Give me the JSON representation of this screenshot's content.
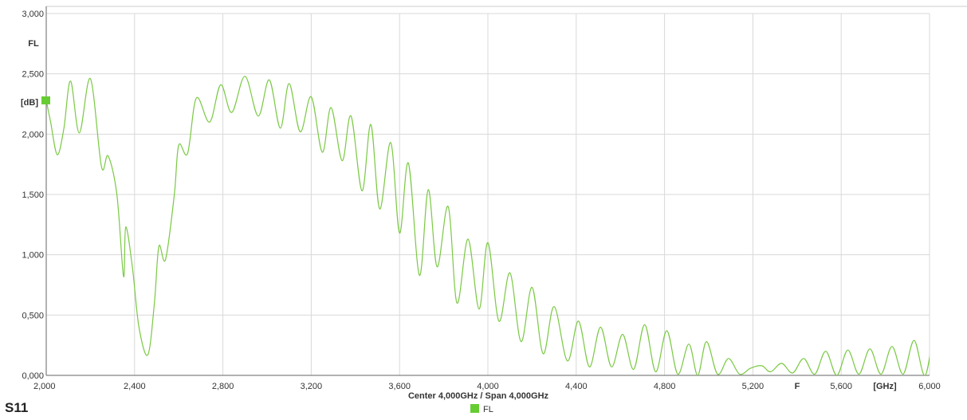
{
  "page_title": "S11",
  "legend": {
    "label": "FL",
    "color": "#66cc33"
  },
  "colors": {
    "trace": "#7ac943",
    "marker": "#66cc33",
    "grid": "#d9d9d9",
    "axis": "#666666",
    "text": "#333333"
  },
  "chart_data": {
    "type": "line",
    "title": "S11",
    "subtitle": "Center 4,000GHz / Span 4,000GHz",
    "ylabel": "FL",
    "yunit": "[dB]",
    "xunit": "[GHz]",
    "xaxis_letter": "F",
    "xlim": [
      2.0,
      6.0
    ],
    "ylim": [
      0.0,
      3.0
    ],
    "grid": true,
    "legend_position": "bottom-center",
    "x_ticks": [
      2.0,
      2.4,
      2.8,
      3.2,
      3.6,
      4.0,
      4.4,
      4.8,
      5.2,
      5.6,
      6.0
    ],
    "x_tick_labels": [
      "2,000",
      "2,400",
      "2,800",
      "3,200",
      "3,600",
      "4,000",
      "4,400",
      "4,800",
      "5,200",
      "",
      "5,600",
      "",
      "6,000"
    ],
    "x_tick_label_values": [
      2.0,
      2.4,
      2.8,
      3.2,
      3.6,
      4.0,
      4.4,
      4.8,
      5.2,
      5.4,
      5.6,
      5.8,
      6.0
    ],
    "y_ticks": [
      0.0,
      0.5,
      1.0,
      1.5,
      2.0,
      2.5,
      3.0
    ],
    "y_tick_labels": [
      "0,000",
      "0,500",
      "1,000",
      "1,500",
      "2,000",
      "2,500",
      "3,000"
    ],
    "series": [
      {
        "name": "FL",
        "points": [
          [
            2.0,
            2.28
          ],
          [
            2.02,
            2.1
          ],
          [
            2.05,
            1.83
          ],
          [
            2.08,
            2.05
          ],
          [
            2.11,
            2.44
          ],
          [
            2.15,
            2.01
          ],
          [
            2.2,
            2.46
          ],
          [
            2.25,
            1.73
          ],
          [
            2.28,
            1.82
          ],
          [
            2.32,
            1.5
          ],
          [
            2.35,
            0.82
          ],
          [
            2.36,
            1.23
          ],
          [
            2.39,
            0.9
          ],
          [
            2.42,
            0.4
          ],
          [
            2.46,
            0.17
          ],
          [
            2.49,
            0.6
          ],
          [
            2.51,
            1.07
          ],
          [
            2.54,
            0.96
          ],
          [
            2.58,
            1.5
          ],
          [
            2.6,
            1.91
          ],
          [
            2.64,
            1.84
          ],
          [
            2.68,
            2.3
          ],
          [
            2.74,
            2.1
          ],
          [
            2.79,
            2.41
          ],
          [
            2.84,
            2.18
          ],
          [
            2.9,
            2.48
          ],
          [
            2.96,
            2.15
          ],
          [
            3.01,
            2.45
          ],
          [
            3.06,
            2.05
          ],
          [
            3.1,
            2.42
          ],
          [
            3.15,
            2.02
          ],
          [
            3.2,
            2.31
          ],
          [
            3.25,
            1.85
          ],
          [
            3.29,
            2.22
          ],
          [
            3.34,
            1.78
          ],
          [
            3.38,
            2.15
          ],
          [
            3.43,
            1.53
          ],
          [
            3.47,
            2.08
          ],
          [
            3.51,
            1.38
          ],
          [
            3.56,
            1.93
          ],
          [
            3.6,
            1.18
          ],
          [
            3.64,
            1.76
          ],
          [
            3.69,
            0.83
          ],
          [
            3.73,
            1.54
          ],
          [
            3.77,
            0.9
          ],
          [
            3.82,
            1.4
          ],
          [
            3.86,
            0.6
          ],
          [
            3.91,
            1.13
          ],
          [
            3.96,
            0.55
          ],
          [
            4.0,
            1.1
          ],
          [
            4.05,
            0.45
          ],
          [
            4.1,
            0.85
          ],
          [
            4.15,
            0.28
          ],
          [
            4.2,
            0.73
          ],
          [
            4.25,
            0.18
          ],
          [
            4.3,
            0.57
          ],
          [
            4.36,
            0.12
          ],
          [
            4.41,
            0.45
          ],
          [
            4.46,
            0.07
          ],
          [
            4.51,
            0.4
          ],
          [
            4.56,
            0.07
          ],
          [
            4.61,
            0.34
          ],
          [
            4.66,
            0.05
          ],
          [
            4.71,
            0.42
          ],
          [
            4.76,
            0.03
          ],
          [
            4.81,
            0.37
          ],
          [
            4.86,
            0.01
          ],
          [
            4.91,
            0.26
          ],
          [
            4.95,
            0.0
          ],
          [
            4.99,
            0.28
          ],
          [
            5.04,
            0.01
          ],
          [
            5.09,
            0.14
          ],
          [
            5.14,
            0.01
          ],
          [
            5.19,
            0.06
          ],
          [
            5.24,
            0.08
          ],
          [
            5.28,
            0.03
          ],
          [
            5.33,
            0.1
          ],
          [
            5.38,
            0.02
          ],
          [
            5.43,
            0.14
          ],
          [
            5.48,
            0.01
          ],
          [
            5.53,
            0.2
          ],
          [
            5.58,
            0.0
          ],
          [
            5.63,
            0.21
          ],
          [
            5.68,
            0.01
          ],
          [
            5.73,
            0.22
          ],
          [
            5.78,
            0.01
          ],
          [
            5.83,
            0.24
          ],
          [
            5.88,
            0.01
          ],
          [
            5.93,
            0.29
          ],
          [
            5.98,
            0.0
          ],
          [
            6.03,
            0.41
          ],
          [
            6.07,
            0.02
          ],
          [
            6.1,
            0.15
          ]
        ]
      }
    ]
  }
}
